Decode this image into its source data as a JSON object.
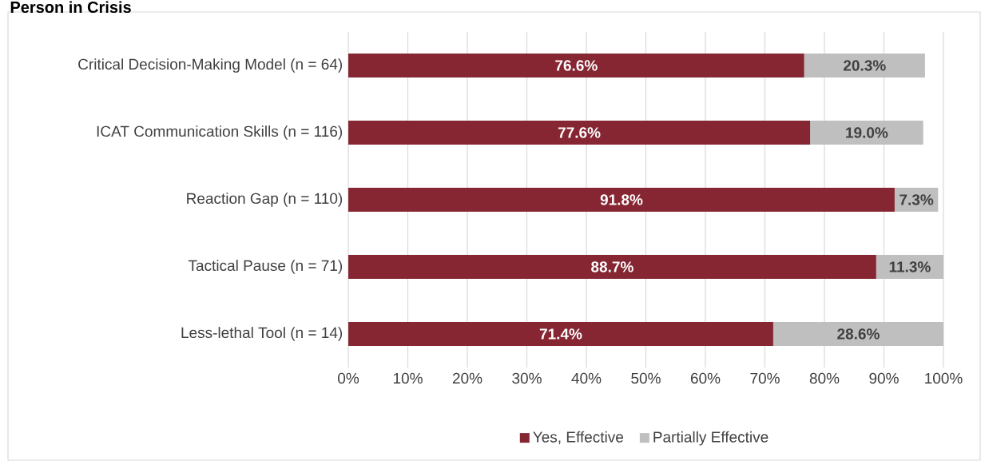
{
  "chart_data": {
    "type": "bar",
    "orientation": "horizontal",
    "stacked": true,
    "title": "Person in Crisis",
    "categories": [
      "Critical Decision-Making Model (n = 64)",
      "ICAT Communication Skills (n = 116)",
      "Reaction Gap (n = 110)",
      "Tactical Pause (n = 71)",
      "Less-lethal Tool (n = 14)"
    ],
    "series": [
      {
        "name": "Yes, Effective",
        "color": "#862633",
        "values": [
          76.6,
          77.6,
          91.8,
          88.7,
          71.4
        ],
        "value_labels": [
          "76.6%",
          "77.6%",
          "91.8%",
          "88.7%",
          "71.4%"
        ]
      },
      {
        "name": "Partially Effective",
        "color": "#bfbfbf",
        "values": [
          20.3,
          19.0,
          7.3,
          11.3,
          28.6
        ],
        "value_labels": [
          "20.3%",
          "19.0%",
          "7.3%",
          "11.3%",
          "28.6%"
        ]
      }
    ],
    "xlim": [
      0,
      100
    ],
    "xticks": [
      {
        "value": 0,
        "label": "0%"
      },
      {
        "value": 10,
        "label": "10%"
      },
      {
        "value": 20,
        "label": "20%"
      },
      {
        "value": 30,
        "label": "30%"
      },
      {
        "value": 40,
        "label": "40%"
      },
      {
        "value": 50,
        "label": "50%"
      },
      {
        "value": 60,
        "label": "60%"
      },
      {
        "value": 70,
        "label": "70%"
      },
      {
        "value": 80,
        "label": "80%"
      },
      {
        "value": 90,
        "label": "90%"
      },
      {
        "value": 100,
        "label": "100%"
      }
    ],
    "grid": "x",
    "legend": "bottom"
  }
}
